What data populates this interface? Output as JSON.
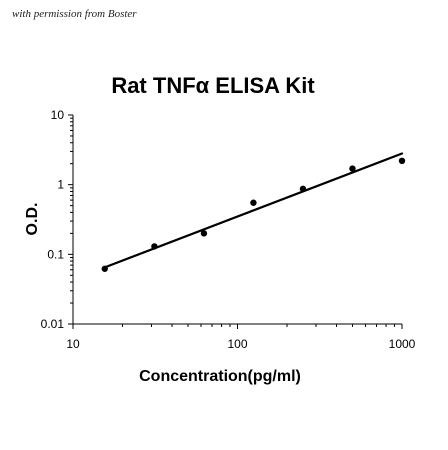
{
  "watermark": "with permission from Boster",
  "chart_data": {
    "type": "scatter",
    "title": "Rat TNFα ELISA Kit",
    "xlabel": "Concentration(pg/ml)",
    "ylabel": "O.D.",
    "x_scale": "log",
    "y_scale": "log",
    "xlim": [
      10,
      1000
    ],
    "ylim": [
      0.01,
      10
    ],
    "x_ticks": [
      10,
      100,
      1000
    ],
    "x_tick_labels": [
      "10",
      "100",
      "1000"
    ],
    "y_ticks": [
      0.01,
      0.1,
      1,
      10
    ],
    "y_tick_labels": [
      "0.01",
      "0.1",
      "1",
      "10"
    ],
    "grid": false,
    "legend": "none",
    "series": [
      {
        "x": [
          15.6,
          31.25,
          62.5,
          125,
          250,
          500,
          1000
        ],
        "y": [
          0.062,
          0.13,
          0.2,
          0.55,
          0.87,
          1.7,
          2.2
        ]
      }
    ],
    "fit_line": {
      "x": [
        15.6,
        1000
      ],
      "y": [
        0.065,
        2.8
      ]
    },
    "colors": {
      "points": "#000000",
      "line": "#000000",
      "axis": "#000000"
    }
  }
}
